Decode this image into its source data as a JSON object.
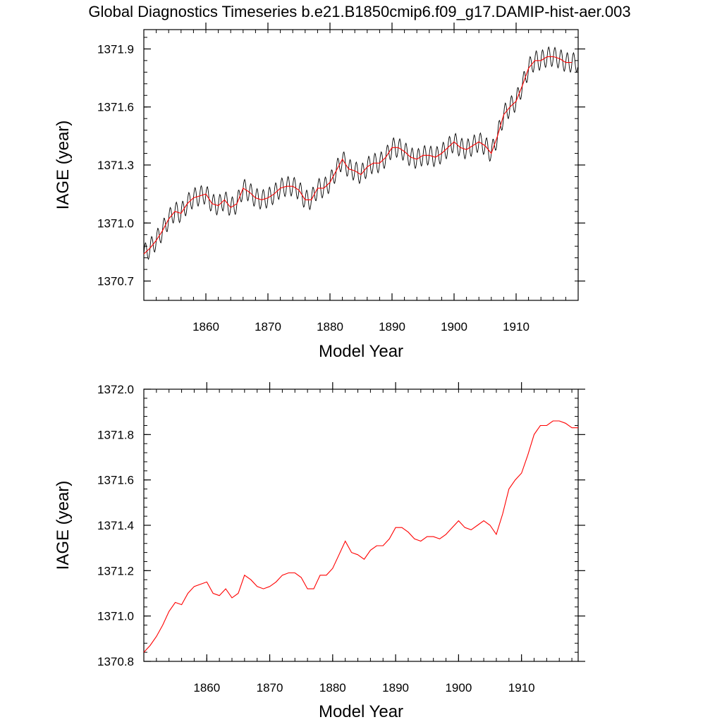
{
  "title": "Global Diagnostics Timeseries b.e21.B1850cmip6.f09_g17.DAMIP-hist-aer.003",
  "colors": {
    "monthly": "#000000",
    "annual": "#ff0000",
    "axis": "#000000"
  },
  "chart_data": [
    {
      "type": "line",
      "xlabel": "Model Year",
      "ylabel": "IAGE (year)",
      "xlim": [
        1850,
        1920
      ],
      "ylim": [
        1370.6,
        1372.0
      ],
      "x_ticks": [
        1860,
        1870,
        1880,
        1890,
        1900,
        1910
      ],
      "x_tick_labels": [
        "1860",
        "1870",
        "1880",
        "1890",
        "1900",
        "1910"
      ],
      "y_ticks": [
        1370.7,
        1371.0,
        1371.3,
        1371.6,
        1371.9
      ],
      "y_tick_labels": [
        "1370.7",
        "1371.0",
        "1371.3",
        "1371.6",
        "1371.9"
      ],
      "series": [
        {
          "style": "monthly, seasonal cycle",
          "color": "#000000",
          "x_start": 1850.0,
          "x_step": 0.0833333,
          "seasonal_amplitude": 0.05,
          "baseline_years": [
            1850,
            1851,
            1852,
            1853,
            1854,
            1855,
            1856,
            1857,
            1858,
            1859,
            1860,
            1861,
            1862,
            1863,
            1864,
            1865,
            1866,
            1867,
            1868,
            1869,
            1870,
            1871,
            1872,
            1873,
            1874,
            1875,
            1876,
            1877,
            1878,
            1879,
            1880,
            1881,
            1882,
            1883,
            1884,
            1885,
            1886,
            1887,
            1888,
            1889,
            1890,
            1891,
            1892,
            1893,
            1894,
            1895,
            1896,
            1897,
            1898,
            1899,
            1900,
            1901,
            1902,
            1903,
            1904,
            1905,
            1906,
            1907,
            1908,
            1909,
            1910,
            1911,
            1912,
            1913,
            1914,
            1915,
            1916,
            1917,
            1918,
            1919
          ],
          "baseline_values": [
            1370.84,
            1370.87,
            1370.91,
            1370.96,
            1371.02,
            1371.06,
            1371.05,
            1371.1,
            1371.13,
            1371.14,
            1371.15,
            1371.1,
            1371.09,
            1371.12,
            1371.08,
            1371.1,
            1371.18,
            1371.16,
            1371.13,
            1371.12,
            1371.13,
            1371.15,
            1371.18,
            1371.19,
            1371.19,
            1371.17,
            1371.12,
            1371.12,
            1371.18,
            1371.18,
            1371.21,
            1371.27,
            1371.33,
            1371.28,
            1371.27,
            1371.25,
            1371.29,
            1371.31,
            1371.31,
            1371.34,
            1371.39,
            1371.39,
            1371.37,
            1371.34,
            1371.33,
            1371.35,
            1371.35,
            1371.34,
            1371.36,
            1371.39,
            1371.42,
            1371.39,
            1371.38,
            1371.4,
            1371.42,
            1371.4,
            1371.36,
            1371.45,
            1371.56,
            1371.6,
            1371.63,
            1371.71,
            1371.8,
            1371.84,
            1371.84,
            1371.86,
            1371.86,
            1371.85,
            1371.83,
            1371.83
          ]
        },
        {
          "style": "annual mean",
          "color": "#ff0000",
          "x": [
            1850,
            1851,
            1852,
            1853,
            1854,
            1855,
            1856,
            1857,
            1858,
            1859,
            1860,
            1861,
            1862,
            1863,
            1864,
            1865,
            1866,
            1867,
            1868,
            1869,
            1870,
            1871,
            1872,
            1873,
            1874,
            1875,
            1876,
            1877,
            1878,
            1879,
            1880,
            1881,
            1882,
            1883,
            1884,
            1885,
            1886,
            1887,
            1888,
            1889,
            1890,
            1891,
            1892,
            1893,
            1894,
            1895,
            1896,
            1897,
            1898,
            1899,
            1900,
            1901,
            1902,
            1903,
            1904,
            1905,
            1906,
            1907,
            1908,
            1909,
            1910,
            1911,
            1912,
            1913,
            1914,
            1915,
            1916,
            1917,
            1918,
            1919
          ],
          "values": [
            1370.84,
            1370.87,
            1370.91,
            1370.96,
            1371.02,
            1371.06,
            1371.05,
            1371.1,
            1371.13,
            1371.14,
            1371.15,
            1371.1,
            1371.09,
            1371.12,
            1371.08,
            1371.1,
            1371.18,
            1371.16,
            1371.13,
            1371.12,
            1371.13,
            1371.15,
            1371.18,
            1371.19,
            1371.19,
            1371.17,
            1371.12,
            1371.12,
            1371.18,
            1371.18,
            1371.21,
            1371.27,
            1371.33,
            1371.28,
            1371.27,
            1371.25,
            1371.29,
            1371.31,
            1371.31,
            1371.34,
            1371.39,
            1371.39,
            1371.37,
            1371.34,
            1371.33,
            1371.35,
            1371.35,
            1371.34,
            1371.36,
            1371.39,
            1371.42,
            1371.39,
            1371.38,
            1371.4,
            1371.42,
            1371.4,
            1371.36,
            1371.45,
            1371.56,
            1371.6,
            1371.63,
            1371.71,
            1371.8,
            1371.84,
            1371.84,
            1371.86,
            1371.86,
            1371.85,
            1371.83,
            1371.83
          ]
        }
      ]
    },
    {
      "type": "line",
      "xlabel": "Model Year",
      "ylabel": "IAGE (year)",
      "xlim": [
        1850,
        1919
      ],
      "ylim": [
        1370.8,
        1372.0
      ],
      "x_ticks": [
        1860,
        1870,
        1880,
        1890,
        1900,
        1910
      ],
      "x_tick_labels": [
        "1860",
        "1870",
        "1880",
        "1890",
        "1900",
        "1910"
      ],
      "y_ticks": [
        1370.8,
        1371.0,
        1371.2,
        1371.4,
        1371.6,
        1371.8,
        1372.0
      ],
      "y_tick_labels": [
        "1370.8",
        "1371.0",
        "1371.2",
        "1371.4",
        "1371.6",
        "1371.8",
        "1372.0"
      ],
      "series": [
        {
          "style": "annual mean",
          "color": "#ff0000",
          "x": [
            1850,
            1851,
            1852,
            1853,
            1854,
            1855,
            1856,
            1857,
            1858,
            1859,
            1860,
            1861,
            1862,
            1863,
            1864,
            1865,
            1866,
            1867,
            1868,
            1869,
            1870,
            1871,
            1872,
            1873,
            1874,
            1875,
            1876,
            1877,
            1878,
            1879,
            1880,
            1881,
            1882,
            1883,
            1884,
            1885,
            1886,
            1887,
            1888,
            1889,
            1890,
            1891,
            1892,
            1893,
            1894,
            1895,
            1896,
            1897,
            1898,
            1899,
            1900,
            1901,
            1902,
            1903,
            1904,
            1905,
            1906,
            1907,
            1908,
            1909,
            1910,
            1911,
            1912,
            1913,
            1914,
            1915,
            1916,
            1917,
            1918,
            1919
          ],
          "values": [
            1370.84,
            1370.87,
            1370.91,
            1370.96,
            1371.02,
            1371.06,
            1371.05,
            1371.1,
            1371.13,
            1371.14,
            1371.15,
            1371.1,
            1371.09,
            1371.12,
            1371.08,
            1371.1,
            1371.18,
            1371.16,
            1371.13,
            1371.12,
            1371.13,
            1371.15,
            1371.18,
            1371.19,
            1371.19,
            1371.17,
            1371.12,
            1371.12,
            1371.18,
            1371.18,
            1371.21,
            1371.27,
            1371.33,
            1371.28,
            1371.27,
            1371.25,
            1371.29,
            1371.31,
            1371.31,
            1371.34,
            1371.39,
            1371.39,
            1371.37,
            1371.34,
            1371.33,
            1371.35,
            1371.35,
            1371.34,
            1371.36,
            1371.39,
            1371.42,
            1371.39,
            1371.38,
            1371.4,
            1371.42,
            1371.4,
            1371.36,
            1371.45,
            1371.56,
            1371.6,
            1371.63,
            1371.71,
            1371.8,
            1371.84,
            1371.84,
            1371.86,
            1371.86,
            1371.85,
            1371.83,
            1371.83
          ]
        }
      ]
    }
  ]
}
